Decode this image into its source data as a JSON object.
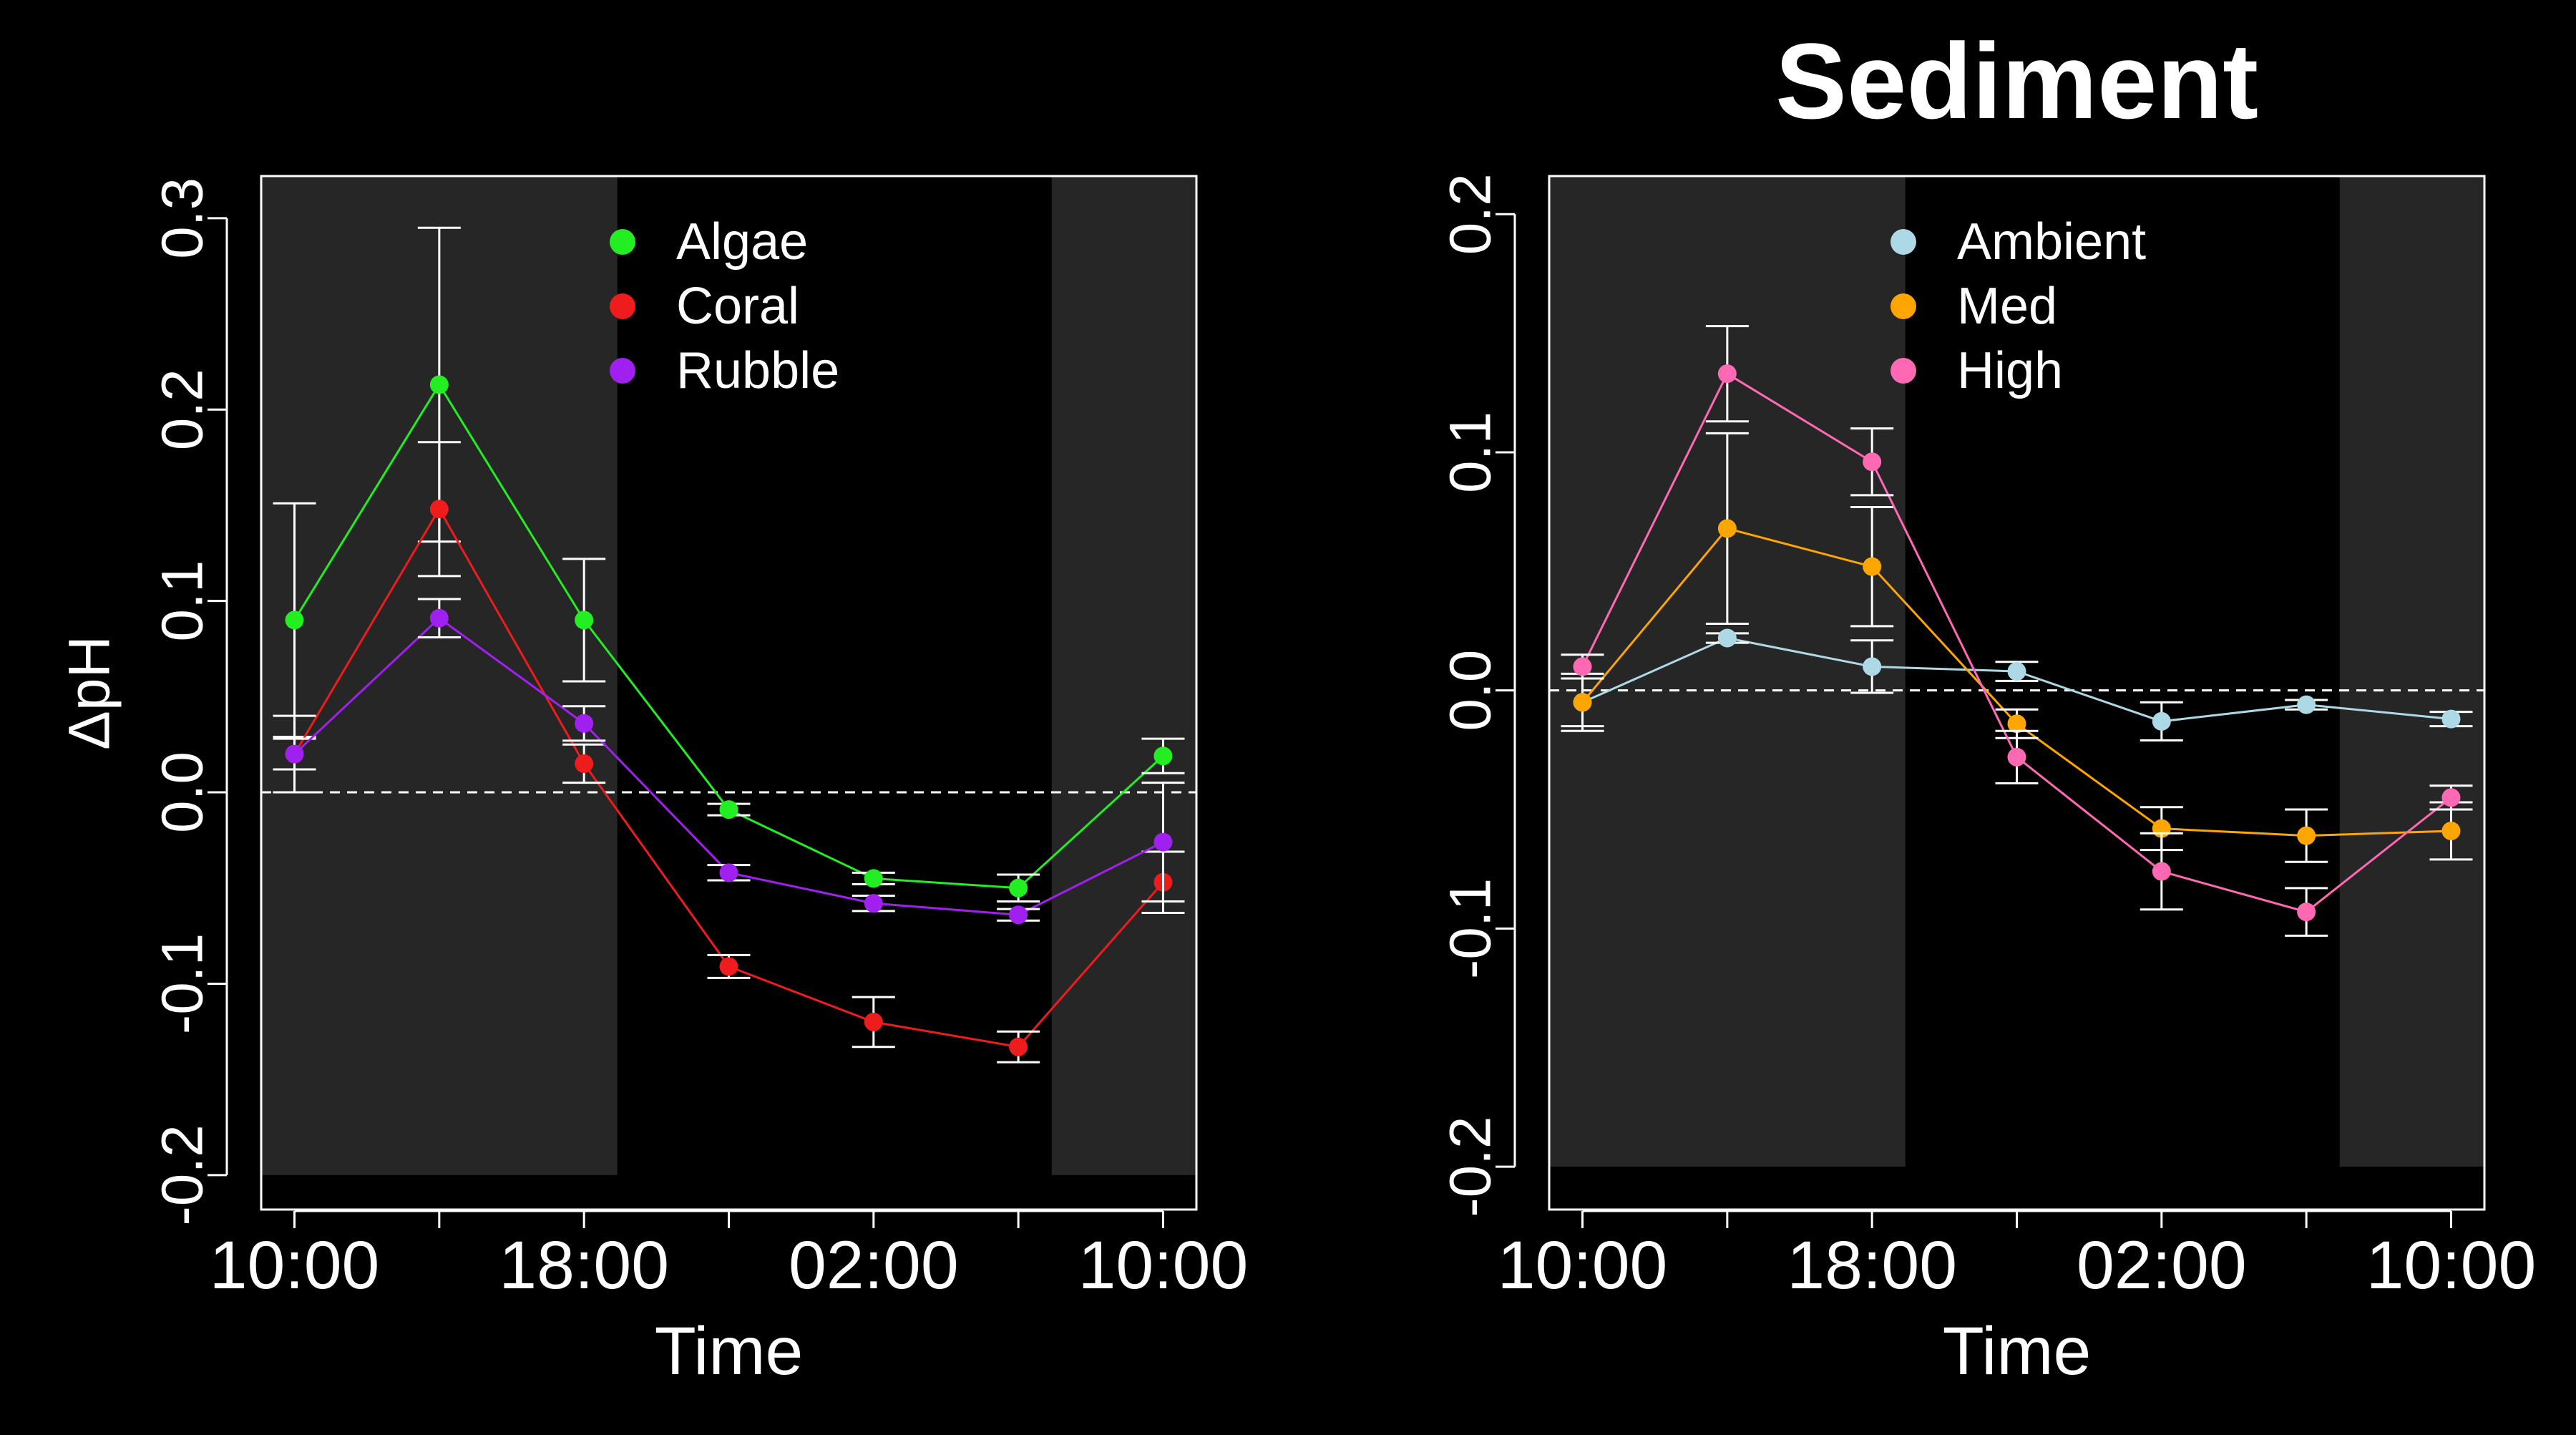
{
  "colors": {
    "background": "#000000",
    "foreground": "#ffffff",
    "night_shading": "#262626"
  },
  "chart_data": [
    {
      "type": "line",
      "title": "",
      "xlabel": "Time",
      "ylabel": "ΔpH",
      "x_tick_labels": [
        "10:00",
        "18:00",
        "02:00",
        "10:00"
      ],
      "x": [
        0,
        1,
        2,
        3,
        4,
        5,
        6
      ],
      "xlim": [
        -0.23,
        6.23
      ],
      "ylim": [
        -0.218,
        0.322
      ],
      "y_ticks": [
        -0.2,
        -0.1,
        0.0,
        0.1,
        0.2,
        0.3
      ],
      "y_tick_labels": [
        "-0.2",
        "-0.1",
        "0.0",
        "0.1",
        "0.2",
        "0.3"
      ],
      "reference_line": 0,
      "shaded_x_ranges": [
        [
          -0.23,
          2.23
        ],
        [
          5.23,
          6.23
        ]
      ],
      "shading_ymin": -0.2,
      "legend_position": "top-center",
      "series": [
        {
          "name": "Algae",
          "color": "#22ee22",
          "values": [
            0.09,
            0.213,
            0.09,
            -0.009,
            -0.045,
            -0.05,
            0.019
          ],
          "err": [
            0.061,
            0.082,
            0.032,
            0.003,
            0.003,
            0.007,
            0.009
          ]
        },
        {
          "name": "Coral",
          "color": "#ee1c1c",
          "values": [
            0.02,
            0.148,
            0.015,
            -0.091,
            -0.12,
            -0.133,
            -0.047
          ],
          "err": [
            0.008,
            0.035,
            0.01,
            0.006,
            0.013,
            0.008,
            0.016
          ]
        },
        {
          "name": "Rubble",
          "color": "#a020f0",
          "values": [
            0.02,
            0.091,
            0.036,
            -0.042,
            -0.058,
            -0.064,
            -0.026
          ],
          "err": [
            0.02,
            0.01,
            0.009,
            0.004,
            0.004,
            0.003,
            0.031
          ]
        }
      ]
    },
    {
      "type": "line",
      "title": "Sediment",
      "xlabel": "Time",
      "ylabel": "",
      "x_tick_labels": [
        "10:00",
        "18:00",
        "02:00",
        "10:00"
      ],
      "x": [
        0,
        1,
        2,
        3,
        4,
        5,
        6
      ],
      "xlim": [
        -0.23,
        6.23
      ],
      "ylim": [
        -0.218,
        0.216
      ],
      "y_ticks": [
        -0.2,
        -0.1,
        0.0,
        0.1,
        0.2
      ],
      "y_tick_labels": [
        "-0.2",
        "-0.1",
        "0.0",
        "0.1",
        "0.2"
      ],
      "reference_line": 0,
      "shaded_x_ranges": [
        [
          -0.23,
          2.23
        ],
        [
          5.23,
          6.23
        ]
      ],
      "shading_ymin": -0.2,
      "legend_position": "top-center",
      "series": [
        {
          "name": "Ambient",
          "color": "#add8e6",
          "values": [
            -0.005,
            0.022,
            0.01,
            0.008,
            -0.013,
            -0.006,
            -0.012
          ],
          "err": [
            0.01,
            0.002,
            0.011,
            0.004,
            0.008,
            0.002,
            0.003
          ]
        },
        {
          "name": "Med",
          "color": "#ffa500",
          "values": [
            -0.005,
            0.068,
            0.052,
            -0.014,
            -0.058,
            -0.061,
            -0.059
          ],
          "err": [
            0.012,
            0.04,
            0.025,
            0.006,
            0.009,
            0.011,
            0.012
          ]
        },
        {
          "name": "High",
          "color": "#ff69b4",
          "values": [
            0.01,
            0.133,
            0.096,
            -0.028,
            -0.076,
            -0.093,
            -0.045
          ],
          "err": [
            0.005,
            0.02,
            0.014,
            0.011,
            0.016,
            0.01,
            0.005
          ]
        }
      ]
    }
  ]
}
